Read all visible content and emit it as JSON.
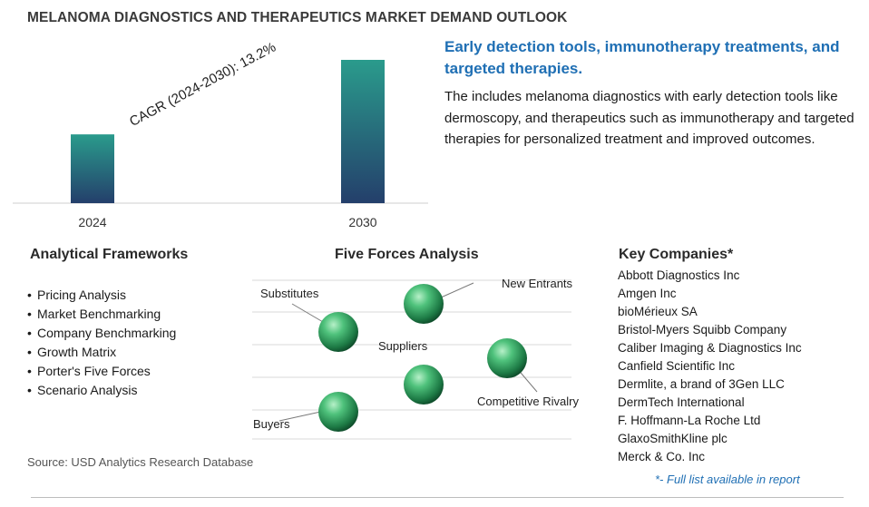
{
  "header": {
    "title": "MELANOMA DIAGNOSTICS AND THERAPEUTICS MARKET DEMAND OUTLOOK"
  },
  "chart_data": {
    "type": "bar",
    "categories": [
      "2024",
      "2030"
    ],
    "values": [
      0.48,
      1.0
    ],
    "ylim": [
      0,
      1.0
    ],
    "title": "",
    "xlabel": "",
    "ylabel": "",
    "grid": false,
    "annotation": "CAGR (2024-2030):   13.2%",
    "colors": {
      "bar_top": "#2a9b8c",
      "bar_bottom": "#243f6b"
    }
  },
  "highlight": {
    "title": "Early detection tools, immunotherapy treatments, and targeted therapies.",
    "description": "The includes melanoma diagnostics with early detection tools like dermoscopy, and therapeutics such as immunotherapy and targeted therapies for personalized treatment and improved outcomes."
  },
  "frameworks": {
    "title": "Analytical Frameworks",
    "items": [
      "Pricing Analysis",
      "Market Benchmarking",
      "Company Benchmarking",
      "Growth Matrix",
      "Porter's Five Forces",
      "Scenario Analysis"
    ]
  },
  "five_forces": {
    "title": "Five Forces Analysis",
    "labels": {
      "substitutes": "Substitutes",
      "new_entrants": "New Entrants",
      "suppliers": "Suppliers",
      "competitive_rivalry": "Competitive Rivalry",
      "buyers": "Buyers"
    },
    "sphere_icon": "green-sphere-icon"
  },
  "companies": {
    "title": "Key Companies*",
    "items": [
      "Abbott Diagnostics Inc",
      "Amgen Inc",
      "bioMérieux SA",
      "Bristol-Myers Squibb Company",
      "Caliber Imaging & Diagnostics Inc",
      "Canfield Scientific Inc",
      "Dermlite, a brand of 3Gen LLC",
      "DermTech International",
      "F. Hoffmann-La Roche Ltd",
      "GlaxoSmithKline plc",
      "Merck & Co. Inc"
    ],
    "footnote": "*- Full list available in report"
  },
  "source": "Source: USD Analytics Research Database"
}
